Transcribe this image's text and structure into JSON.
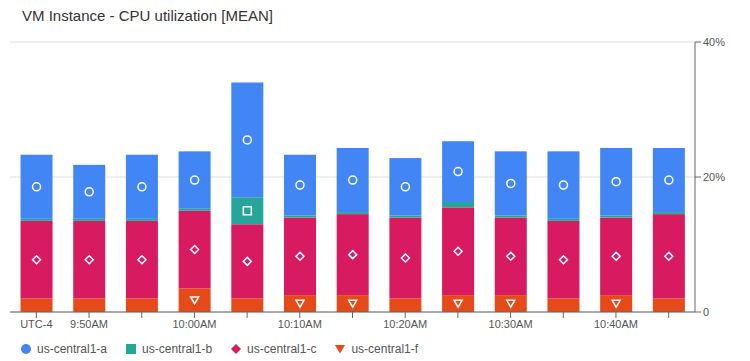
{
  "chart_data": {
    "type": "bar",
    "title": "VM Instance - CPU utilization [MEAN]",
    "categories": [
      "UTC-4",
      "9:50AM",
      null,
      "10:00AM",
      null,
      "10:10AM",
      null,
      "10:20AM",
      null,
      "10:30AM",
      null,
      "10:40AM",
      null
    ],
    "series": [
      {
        "name": "us-central1-a",
        "color": "#4285F4",
        "marker": "circle",
        "values": [
          9.5,
          8.0,
          9.5,
          8.5,
          17.0,
          9.0,
          9.5,
          8.5,
          9.0,
          9.5,
          10.0,
          10.0,
          9.5
        ]
      },
      {
        "name": "us-central1-b",
        "color": "#26A69A",
        "marker": "square",
        "values": [
          0.3,
          0.3,
          0.3,
          0.3,
          4.0,
          0.3,
          0.3,
          0.3,
          0.8,
          0.3,
          0.3,
          0.3,
          0.3
        ]
      },
      {
        "name": "us-central1-c",
        "color": "#D81B60",
        "marker": "diamond",
        "values": [
          11.5,
          11.5,
          11.5,
          11.5,
          11.0,
          11.5,
          12.0,
          12.0,
          13.0,
          11.5,
          11.5,
          11.5,
          12.5
        ]
      },
      {
        "name": "us-central1-f",
        "color": "#E64A19",
        "marker": "triangle_down",
        "values": [
          2.0,
          2.0,
          2.0,
          3.5,
          2.0,
          2.5,
          2.5,
          2.0,
          2.5,
          2.5,
          2.0,
          2.5,
          2.0
        ]
      }
    ],
    "stacked": true,
    "ylim": [
      0,
      40
    ],
    "yticks": [
      0,
      {
        "value": 20,
        "label": "20%"
      },
      {
        "value": 40,
        "label": "40%"
      }
    ],
    "grid": true,
    "legend": "bottom"
  }
}
